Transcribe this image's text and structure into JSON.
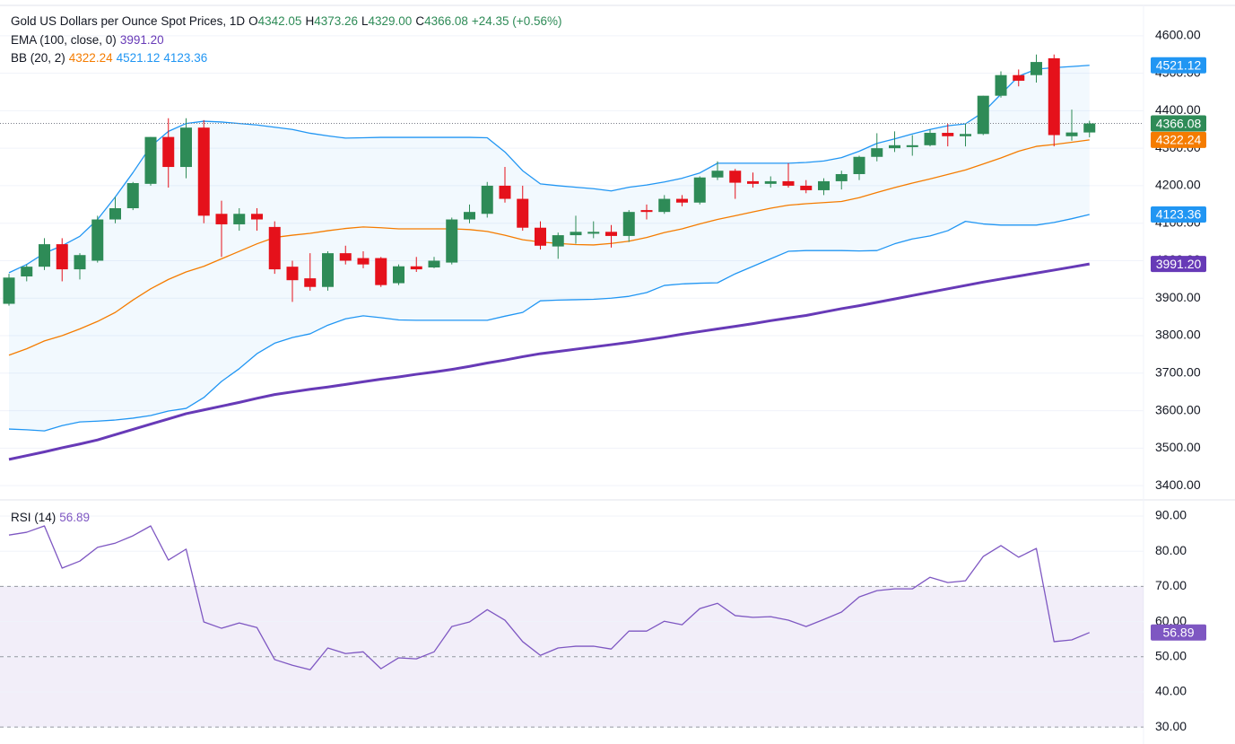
{
  "chart_data": [
    {
      "type": "candlestick",
      "title": "Gold US Dollars per Ounce Spot Prices, 1D",
      "ohlc": [
        {
          "label": "O",
          "value": "4342.05"
        },
        {
          "label": "H",
          "value": "4373.26"
        },
        {
          "label": "L",
          "value": "4329.00"
        },
        {
          "label": "C",
          "value": "4366.08"
        }
      ],
      "change": "+24.35 (+0.56%)",
      "indicators": [
        "EMA (100, close, 0)",
        "BB (20, 2)"
      ],
      "up_color": "#2e8b57",
      "down_color": "#e5111b",
      "open": [
        3885,
        3958,
        3984,
        4044,
        3977,
        4000,
        4110,
        4140,
        4205,
        4330,
        4250,
        4355,
        4125,
        4097,
        4125,
        4090,
        3984,
        3953,
        3930,
        4020,
        4007,
        4007,
        3940,
        3985,
        3982,
        3995,
        4110,
        4125,
        4200,
        4165,
        4088,
        4038,
        4068,
        4072,
        4077,
        4066,
        4135,
        4130,
        4165,
        4155,
        4222,
        4240,
        4212,
        4205,
        4212,
        4200,
        4188,
        4212,
        4231,
        4277,
        4300,
        4303,
        4308,
        4341,
        4332,
        4338,
        4440,
        4495,
        4495,
        4540,
        4332,
        4342.05
      ],
      "high": [
        3965,
        3990,
        4060,
        4060,
        4020,
        4120,
        4170,
        4210,
        4330,
        4380,
        4380,
        4375,
        4160,
        4140,
        4140,
        4105,
        4000,
        4020,
        4025,
        4040,
        4025,
        4010,
        3990,
        4010,
        4010,
        4115,
        4150,
        4210,
        4250,
        4200,
        4105,
        4075,
        4120,
        4105,
        4095,
        4135,
        4150,
        4175,
        4175,
        4225,
        4265,
        4245,
        4235,
        4225,
        4260,
        4215,
        4220,
        4240,
        4280,
        4340,
        4345,
        4335,
        4350,
        4365,
        4365,
        4440,
        4505,
        4510,
        4550,
        4550,
        4403,
        4373.26
      ],
      "low": [
        3880,
        3945,
        3975,
        3945,
        3950,
        3995,
        4100,
        4135,
        4200,
        4195,
        4220,
        4100,
        4010,
        4080,
        4080,
        3965,
        3890,
        3920,
        3920,
        3990,
        3980,
        3930,
        3935,
        3970,
        3980,
        3990,
        4100,
        4115,
        4155,
        4080,
        4030,
        4005,
        4045,
        4060,
        4035,
        4050,
        4110,
        4125,
        4145,
        4150,
        4215,
        4165,
        4195,
        4195,
        4195,
        4180,
        4175,
        4190,
        4215,
        4265,
        4290,
        4280,
        4305,
        4305,
        4305,
        4335,
        4435,
        4465,
        4475,
        4305,
        4320,
        4329
      ],
      "close": [
        3955,
        3984,
        4044,
        3977,
        4015,
        4110,
        4140,
        4207,
        4330,
        4250,
        4355,
        4120,
        4097,
        4125,
        4110,
        3977,
        3948,
        3930,
        4020,
        4000,
        3990,
        3935,
        3985,
        3977,
        4000,
        4110,
        4130,
        4200,
        4165,
        4088,
        4040,
        4068,
        4077,
        4077,
        4066,
        4130,
        4130,
        4165,
        4155,
        4222,
        4240,
        4208,
        4205,
        4212,
        4200,
        4188,
        4212,
        4231,
        4277,
        4300,
        4308,
        4308,
        4341,
        4332,
        4338,
        4440,
        4495,
        4480,
        4530,
        4335,
        4342,
        4366.08
      ],
      "band_fill": "rgba(33,150,243,0.06)",
      "series": [
        {
          "color": "#673ab7",
          "width": 3,
          "last_label": "3991.20",
          "values": [
            3470,
            3480,
            3490,
            3501,
            3511,
            3522,
            3536,
            3550,
            3564,
            3578,
            3592,
            3602,
            3612,
            3622,
            3633,
            3643,
            3650,
            3657,
            3663,
            3670,
            3677,
            3684,
            3690,
            3697,
            3703,
            3710,
            3718,
            3727,
            3735,
            3744,
            3752,
            3758,
            3764,
            3770,
            3776,
            3782,
            3789,
            3796,
            3804,
            3811,
            3818,
            3825,
            3832,
            3840,
            3847,
            3854,
            3863,
            3872,
            3880,
            3889,
            3898,
            3907,
            3916,
            3925,
            3934,
            3943,
            3951,
            3959,
            3967,
            3975,
            3983,
            3991.2
          ]
        },
        {
          "color": "#f57c00",
          "width": 1.3,
          "last_label": "4322.24",
          "values": [
            3748,
            3765,
            3786,
            3800,
            3818,
            3838,
            3862,
            3895,
            3925,
            3950,
            3970,
            3985,
            4005,
            4025,
            4045,
            4062,
            4068,
            4073,
            4080,
            4086,
            4090,
            4088,
            4085,
            4085,
            4085,
            4085,
            4083,
            4078,
            4068,
            4056,
            4050,
            4046,
            4043,
            4042,
            4046,
            4052,
            4062,
            4075,
            4085,
            4098,
            4110,
            4120,
            4130,
            4140,
            4148,
            4152,
            4155,
            4158,
            4168,
            4182,
            4195,
            4207,
            4218,
            4230,
            4242,
            4258,
            4274,
            4292,
            4305,
            4310,
            4316,
            4322.24
          ]
        },
        {
          "color": "#2196f3",
          "width": 1.3,
          "last_label": "4521.12",
          "values": [
            3968,
            3990,
            4020,
            4040,
            4065,
            4110,
            4170,
            4235,
            4305,
            4345,
            4366,
            4372,
            4370,
            4366,
            4362,
            4356,
            4350,
            4340,
            4333,
            4327,
            4328,
            4329,
            4329,
            4329,
            4329,
            4329,
            4329,
            4328,
            4290,
            4240,
            4205,
            4200,
            4196,
            4192,
            4186,
            4196,
            4202,
            4210,
            4220,
            4234,
            4260,
            4260,
            4260,
            4260,
            4260,
            4262,
            4266,
            4275,
            4292,
            4313,
            4325,
            4338,
            4350,
            4360,
            4365,
            4396,
            4444,
            4492,
            4511,
            4515,
            4518,
            4521.12
          ]
        },
        {
          "color": "#2196f3",
          "width": 1.3,
          "last_label": "4123.36",
          "values": [
            3551,
            3549,
            3546,
            3560,
            3570,
            3572,
            3575,
            3580,
            3587,
            3599,
            3606,
            3635,
            3678,
            3712,
            3752,
            3780,
            3795,
            3805,
            3828,
            3845,
            3853,
            3848,
            3842,
            3841,
            3841,
            3841,
            3841,
            3841,
            3852,
            3862,
            3893,
            3895,
            3896,
            3897,
            3900,
            3905,
            3915,
            3934,
            3938,
            3940,
            3941,
            3965,
            3985,
            4005,
            4025,
            4027,
            4027,
            4027,
            4026,
            4027,
            4045,
            4058,
            4066,
            4080,
            4105,
            4098,
            4095,
            4095,
            4095,
            4102,
            4112,
            4123.36
          ]
        }
      ],
      "ylim": [
        3362,
        4681
      ],
      "yticks": [
        {
          "value": 3400,
          "label": "3400.00"
        },
        {
          "value": 3500,
          "label": "3500.00"
        },
        {
          "value": 3600,
          "label": "3600.00"
        },
        {
          "value": 3700,
          "label": "3700.00"
        },
        {
          "value": 3800,
          "label": "3800.00"
        },
        {
          "value": 3900,
          "label": "3900.00"
        },
        {
          "value": 4000,
          "label": "4000.00"
        },
        {
          "value": 4100,
          "label": "4100.00"
        },
        {
          "value": 4200,
          "label": "4200.00"
        },
        {
          "value": 4300,
          "label": "4300.00"
        },
        {
          "value": 4400,
          "label": "4400.00"
        },
        {
          "value": 4500,
          "label": "4500.00"
        },
        {
          "value": 4600,
          "label": "4600.00"
        }
      ],
      "grid": true
    },
    {
      "type": "line",
      "title": "RSI (14)",
      "series": [
        {
          "color": "#7e57c2",
          "width": 1.3,
          "last_label": "56.89",
          "values": [
            84.6,
            85.4,
            87.2,
            75.2,
            77.2,
            81.1,
            82.3,
            84.4,
            87.2,
            77.5,
            80.6,
            59.9,
            58.1,
            59.6,
            58.3,
            49.2,
            47.6,
            46.3,
            52.5,
            50.9,
            51.4,
            46.6,
            49.7,
            49.4,
            51.4,
            58.6,
            59.9,
            63.4,
            60.4,
            54.3,
            50.4,
            52.5,
            53.0,
            53.0,
            52.2,
            57.3,
            57.3,
            60.1,
            59.1,
            63.7,
            65.2,
            61.7,
            61.2,
            61.4,
            60.4,
            58.6,
            60.6,
            62.7,
            67.0,
            68.8,
            69.3,
            69.3,
            72.6,
            71.1,
            71.6,
            78.5,
            81.6,
            78.3,
            80.8,
            54.3,
            54.8,
            56.89
          ]
        }
      ],
      "band": [
        30,
        70
      ],
      "band_color": "rgba(126,87,194,0.1)",
      "levels": [
        70,
        50,
        30
      ],
      "ylim": [
        25.2,
        94.6
      ],
      "yticks": [
        {
          "value": 30,
          "label": "30.00"
        },
        {
          "value": 40,
          "label": "40.00"
        },
        {
          "value": 50,
          "label": "50.00"
        },
        {
          "value": 60,
          "label": "60.00"
        },
        {
          "value": 70,
          "label": "70.00"
        },
        {
          "value": 80,
          "label": "80.00"
        },
        {
          "value": 90,
          "label": "90.00"
        }
      ],
      "grid": true
    }
  ]
}
